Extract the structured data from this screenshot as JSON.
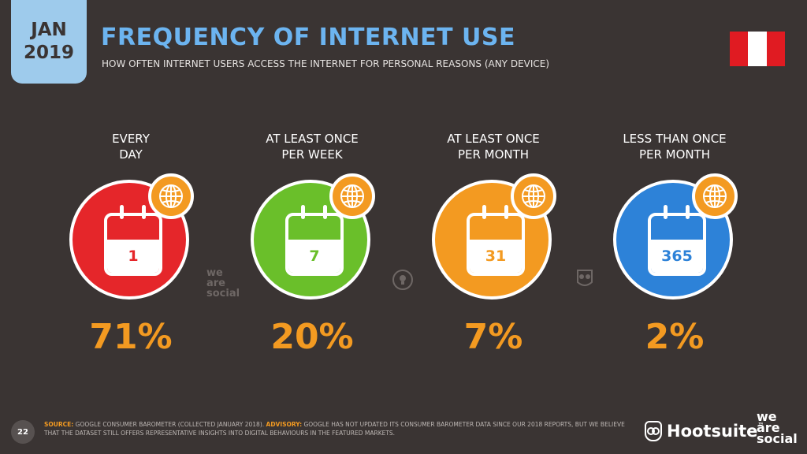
{
  "header": {
    "month": "JAN",
    "year": "2019",
    "title": "FREQUENCY OF INTERNET USE",
    "subtitle": "HOW OFTEN INTERNET USERS ACCESS THE INTERNET FOR PERSONAL REASONS (ANY DEVICE)"
  },
  "flag": {
    "country_colors": [
      "#e01b22",
      "#ffffff",
      "#e01b22"
    ]
  },
  "columns": [
    {
      "label_line1": "EVERY",
      "label_line2": "DAY",
      "calendar_number": "1",
      "percent": "71%",
      "color": "#e5262a"
    },
    {
      "label_line1": "AT LEAST ONCE",
      "label_line2": "PER WEEK",
      "calendar_number": "7",
      "percent": "20%",
      "color": "#6abf2a"
    },
    {
      "label_line1": "AT LEAST ONCE",
      "label_line2": "PER MONTH",
      "calendar_number": "31",
      "percent": "7%",
      "color": "#f39a21"
    },
    {
      "label_line1": "LESS THAN ONCE",
      "label_line2": "PER MONTH",
      "calendar_number": "365",
      "percent": "2%",
      "color": "#2d82d8"
    }
  ],
  "watermark": {
    "line1": "we",
    "line2": "are",
    "line3": "social"
  },
  "footer": {
    "page_number": "22",
    "source_label": "SOURCE:",
    "source_text": "GOOGLE CONSUMER BAROMETER (COLLECTED JANUARY 2018).",
    "advisory_label": "ADVISORY:",
    "advisory_text": "GOOGLE HAS NOT UPDATED ITS CONSUMER BAROMETER DATA SINCE OUR 2018 REPORTS, BUT WE BELIEVE THAT THE DATASET STILL OFFERS REPRESENTATIVE INSIGHTS INTO DIGITAL BEHAVIOURS IN THE FEATURED MARKETS.",
    "brand1": "Hootsuite",
    "brand1_tm": "™",
    "brand2_line1": "we",
    "brand2_line2": "are",
    "brand2_line3": "social"
  },
  "accent_colors": {
    "title": "#6cb4f0",
    "percent": "#f39a21",
    "background": "#3a3433"
  }
}
